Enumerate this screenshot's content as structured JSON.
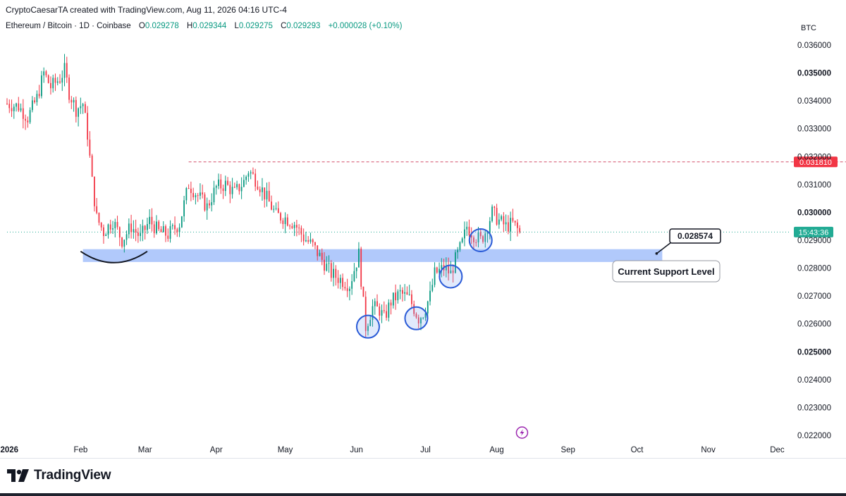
{
  "header": {
    "credit": "CryptoCaesarTA created with TradingView.com, Aug 11, 2026 04:16 UTC-4",
    "symbol": "Ethereum / Bitcoin · 1D · Coinbase",
    "o_label": "O",
    "o_value": "0.029278",
    "h_label": "H",
    "h_value": "0.029344",
    "l_label": "L",
    "l_value": "0.029275",
    "c_label": "C",
    "c_value": "0.029293",
    "change": "+0.000028 (+0.10%)"
  },
  "brand": {
    "name": "TradingView"
  },
  "colors": {
    "up": "#089981",
    "down": "#f23645",
    "support_zone": "#a9c3fb",
    "price_tag": "#22ab94",
    "level_tag": "#f23645"
  },
  "chart_data": {
    "type": "candlestick",
    "y_unit": "BTC",
    "ylim": [
      0.0215,
      0.0367
    ],
    "y_ticks": [
      "0.036000",
      "0.035000",
      "0.034000",
      "0.033000",
      "0.032000",
      "0.031000",
      "0.030000",
      "0.029000",
      "0.028000",
      "0.027000",
      "0.026000",
      "0.025000",
      "0.024000",
      "0.023000",
      "0.022000"
    ],
    "y_ticks_bold": [
      "0.035000",
      "0.030000",
      "0.025000"
    ],
    "x_ticks": [
      {
        "label": "2026",
        "date": "2026-01-01",
        "bold": true
      },
      {
        "label": "Feb",
        "date": "2026-02-01",
        "bold": false
      },
      {
        "label": "Mar",
        "date": "2026-03-01",
        "bold": false
      },
      {
        "label": "Apr",
        "date": "2026-04-01",
        "bold": false
      },
      {
        "label": "May",
        "date": "2026-05-01",
        "bold": false
      },
      {
        "label": "Jun",
        "date": "2026-06-01",
        "bold": false
      },
      {
        "label": "Jul",
        "date": "2026-07-01",
        "bold": false
      },
      {
        "label": "Aug",
        "date": "2026-08-01",
        "bold": false
      },
      {
        "label": "Sep",
        "date": "2026-09-01",
        "bold": false
      },
      {
        "label": "Oct",
        "date": "2026-10-01",
        "bold": false
      },
      {
        "label": "Nov",
        "date": "2026-11-01",
        "bold": false
      },
      {
        "label": "Dec",
        "date": "2026-12-01",
        "bold": false
      }
    ],
    "x_range": [
      "2025-12-31",
      "2026-12-07"
    ],
    "anchors": [
      [
        "2025-12-31",
        0.0339
      ],
      [
        "2026-01-05",
        0.0338
      ],
      [
        "2026-01-09",
        0.0334
      ],
      [
        "2026-01-13",
        0.0341
      ],
      [
        "2026-01-16",
        0.035
      ],
      [
        "2026-01-19",
        0.0345
      ],
      [
        "2026-01-23",
        0.0348
      ],
      [
        "2026-01-25",
        0.0351
      ],
      [
        "2026-01-27",
        0.0343
      ],
      [
        "2026-01-30",
        0.0337
      ],
      [
        "2026-02-02",
        0.0339
      ],
      [
        "2026-02-04",
        0.0328
      ],
      [
        "2026-02-06",
        0.0311
      ],
      [
        "2026-02-08",
        0.0298
      ],
      [
        "2026-02-11",
        0.0293
      ],
      [
        "2026-02-15",
        0.0297
      ],
      [
        "2026-02-19",
        0.029
      ],
      [
        "2026-02-23",
        0.0295
      ],
      [
        "2026-02-27",
        0.0291
      ],
      [
        "2026-03-03",
        0.0297
      ],
      [
        "2026-03-07",
        0.0293
      ],
      [
        "2026-03-11",
        0.0292
      ],
      [
        "2026-03-16",
        0.0296
      ],
      [
        "2026-03-20",
        0.031
      ],
      [
        "2026-03-24",
        0.0306
      ],
      [
        "2026-03-28",
        0.0302
      ],
      [
        "2026-04-01",
        0.0309
      ],
      [
        "2026-04-05",
        0.031
      ],
      [
        "2026-04-09",
        0.0307
      ],
      [
        "2026-04-13",
        0.0311
      ],
      [
        "2026-04-15",
        0.0315
      ],
      [
        "2026-04-19",
        0.0311
      ],
      [
        "2026-04-23",
        0.0305
      ],
      [
        "2026-04-27",
        0.0299
      ],
      [
        "2026-05-01",
        0.0298
      ],
      [
        "2026-05-05",
        0.0296
      ],
      [
        "2026-05-09",
        0.0291
      ],
      [
        "2026-05-13",
        0.0288
      ],
      [
        "2026-05-17",
        0.0283
      ],
      [
        "2026-05-21",
        0.0278
      ],
      [
        "2026-05-25",
        0.0276
      ],
      [
        "2026-05-29",
        0.0274
      ],
      [
        "2026-06-02",
        0.0285
      ],
      [
        "2026-06-04",
        0.0267
      ],
      [
        "2026-06-05",
        0.0259
      ],
      [
        "2026-06-08",
        0.0266
      ],
      [
        "2026-06-11",
        0.0265
      ],
      [
        "2026-06-13",
        0.0262
      ],
      [
        "2026-06-16",
        0.0268
      ],
      [
        "2026-06-20",
        0.0271
      ],
      [
        "2026-06-24",
        0.0269
      ],
      [
        "2026-06-28",
        0.0262
      ],
      [
        "2026-06-30",
        0.0264
      ],
      [
        "2026-07-03",
        0.027
      ],
      [
        "2026-07-05",
        0.0278
      ],
      [
        "2026-07-09",
        0.028
      ],
      [
        "2026-07-12",
        0.0278
      ],
      [
        "2026-07-14",
        0.0283
      ],
      [
        "2026-07-17",
        0.0289
      ],
      [
        "2026-07-19",
        0.0295
      ],
      [
        "2026-07-22",
        0.0292
      ],
      [
        "2026-07-25",
        0.029
      ],
      [
        "2026-07-27",
        0.0293
      ],
      [
        "2026-07-30",
        0.03
      ],
      [
        "2026-08-02",
        0.0297
      ],
      [
        "2026-08-05",
        0.0295
      ],
      [
        "2026-08-08",
        0.0296
      ],
      [
        "2026-08-11",
        0.02929
      ]
    ],
    "resistance_level": {
      "value": 0.03181,
      "label": "0.031810",
      "from": "2026-03-20"
    },
    "current_price": {
      "value": 0.029293,
      "label": "15:43:36"
    },
    "support_zone": {
      "low": 0.02822,
      "high": 0.02868,
      "from": "2026-02-02",
      "to": "2026-10-12"
    },
    "callout_value": {
      "value": 0.028574,
      "label": "0.028574"
    },
    "callout_text": "Current Support Level",
    "circled_lows": [
      {
        "date": "2026-06-06",
        "value": 0.0259
      },
      {
        "date": "2026-06-27",
        "value": 0.0262
      },
      {
        "date": "2026-07-12",
        "value": 0.0277
      },
      {
        "date": "2026-07-25",
        "value": 0.029
      }
    ],
    "arc": {
      "from": "2026-02-01",
      "to": "2026-03-02",
      "bottom": 0.0285
    }
  }
}
